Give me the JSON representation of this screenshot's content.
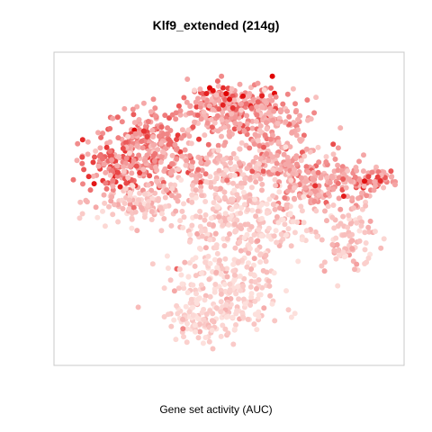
{
  "chart_data": {
    "type": "scatter",
    "title": "Klf9_extended (214g)",
    "xlabel": "Gene set activity (AUC)",
    "ylabel": "",
    "axes_visible": false,
    "grid": false,
    "legend": "none",
    "colors": {
      "low": "#fde0dc",
      "mid": "#f4a3a3",
      "high": "#e8262a",
      "peak": "#e00000",
      "frame": "#c8c8c8"
    },
    "note_values": "AUC shown as colour intensity (0 = pale, 1 = saturated red); coordinates are t-SNE embedding units",
    "xlim": [
      0,
      100
    ],
    "ylim": [
      0,
      100
    ],
    "clusters": [
      {
        "cx": 52,
        "cy": 86,
        "sx": 7,
        "sy": 4,
        "n": 150,
        "auc": 0.55
      },
      {
        "cx": 64,
        "cy": 80,
        "sx": 6,
        "sy": 5,
        "n": 110,
        "auc": 0.45
      },
      {
        "cx": 44,
        "cy": 84,
        "sx": 6,
        "sy": 4,
        "n": 90,
        "auc": 0.5
      },
      {
        "cx": 24,
        "cy": 76,
        "sx": 6,
        "sy": 5,
        "n": 120,
        "auc": 0.55
      },
      {
        "cx": 15,
        "cy": 66,
        "sx": 5,
        "sy": 5,
        "n": 110,
        "auc": 0.6
      },
      {
        "cx": 30,
        "cy": 66,
        "sx": 7,
        "sy": 5,
        "n": 150,
        "auc": 0.5
      },
      {
        "cx": 22,
        "cy": 52,
        "sx": 7,
        "sy": 4,
        "n": 120,
        "auc": 0.25
      },
      {
        "cx": 48,
        "cy": 62,
        "sx": 6,
        "sy": 6,
        "n": 110,
        "auc": 0.3
      },
      {
        "cx": 62,
        "cy": 66,
        "sx": 5,
        "sy": 4,
        "n": 90,
        "auc": 0.4
      },
      {
        "cx": 72,
        "cy": 60,
        "sx": 5,
        "sy": 6,
        "n": 110,
        "auc": 0.45
      },
      {
        "cx": 84,
        "cy": 60,
        "sx": 5,
        "sy": 5,
        "n": 90,
        "auc": 0.5
      },
      {
        "cx": 94,
        "cy": 60,
        "sx": 4,
        "sy": 2,
        "n": 55,
        "auc": 0.55
      },
      {
        "cx": 86,
        "cy": 40,
        "sx": 4,
        "sy": 6,
        "n": 90,
        "auc": 0.25
      },
      {
        "cx": 55,
        "cy": 45,
        "sx": 10,
        "sy": 8,
        "n": 280,
        "auc": 0.15
      },
      {
        "cx": 48,
        "cy": 22,
        "sx": 9,
        "sy": 7,
        "n": 200,
        "auc": 0.1
      },
      {
        "cx": 42,
        "cy": 10,
        "sx": 6,
        "sy": 4,
        "n": 80,
        "auc": 0.08
      }
    ],
    "highlights": [
      {
        "x": 44,
        "y": 92,
        "auc": 1.0
      },
      {
        "x": 45,
        "y": 91,
        "auc": 0.95
      },
      {
        "x": 43,
        "y": 90,
        "auc": 0.9
      },
      {
        "x": 49,
        "y": 90,
        "auc": 1.0
      },
      {
        "x": 50,
        "y": 88,
        "auc": 0.95
      },
      {
        "x": 48,
        "y": 86,
        "auc": 0.9
      },
      {
        "x": 51,
        "y": 85,
        "auc": 0.85
      },
      {
        "x": 63,
        "y": 96,
        "auc": 1.0
      },
      {
        "x": 24,
        "y": 77,
        "auc": 0.85
      },
      {
        "x": 25,
        "y": 75,
        "auc": 0.8
      },
      {
        "x": 76,
        "y": 58,
        "auc": 0.85
      },
      {
        "x": 95,
        "y": 61,
        "auc": 0.8
      }
    ]
  }
}
